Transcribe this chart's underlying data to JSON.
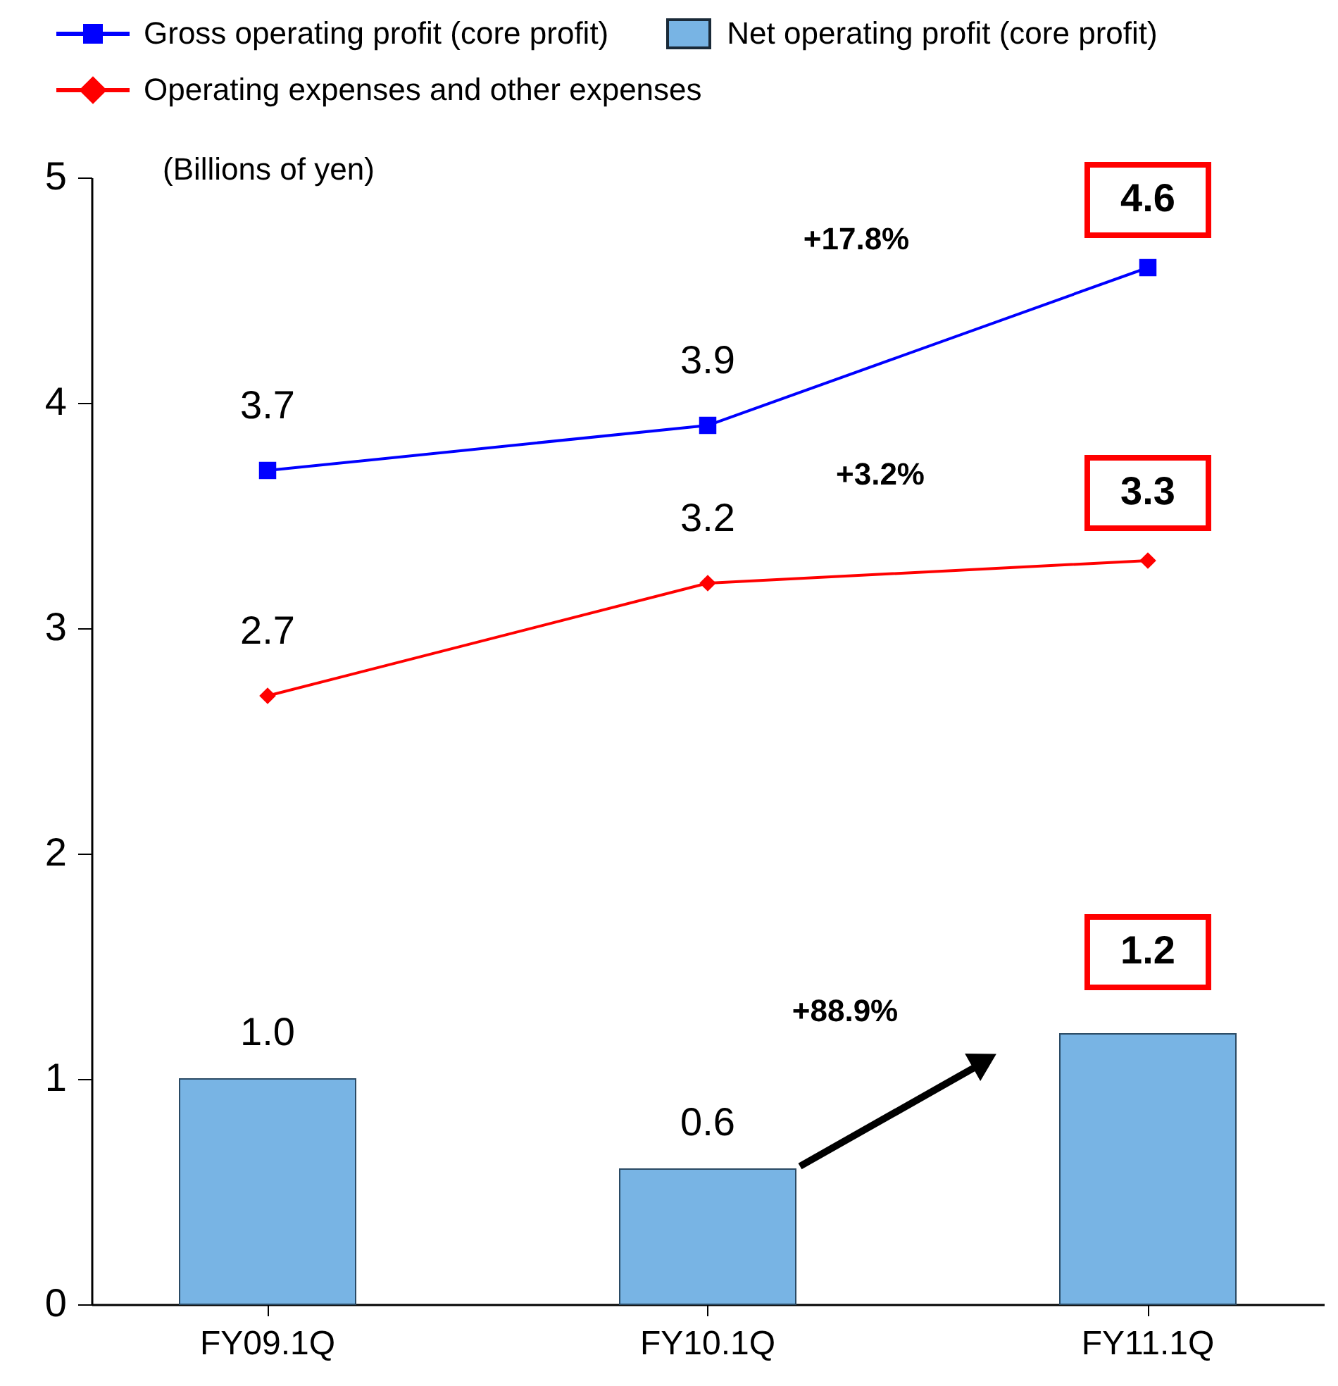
{
  "chart_data": {
    "type": "bar",
    "ylabel": "(Billions of yen)",
    "categories": [
      "FY09.1Q",
      "FY10.1Q",
      "FY11.1Q"
    ],
    "series": [
      {
        "name": "Gross operating profit (core profit)",
        "type": "line",
        "marker": "square",
        "color": "#0000ff",
        "values": [
          3.7,
          3.9,
          4.6
        ],
        "value_labels": [
          "3.7",
          "3.9",
          "4.6"
        ]
      },
      {
        "name": "Net operating profit (core profit)",
        "color": "#78b4e4",
        "values": [
          1.0,
          0.6,
          1.2
        ],
        "value_labels": [
          "1.0",
          "0.6",
          "1.2"
        ]
      },
      {
        "name": "Operating expenses and other expenses",
        "type": "line",
        "marker": "diamond",
        "color": "#ff0000",
        "values": [
          2.7,
          3.2,
          3.3
        ],
        "value_labels": [
          "2.7",
          "3.2",
          "3.3"
        ]
      }
    ],
    "annotations": [
      "+17.8%",
      "+3.2%",
      "+88.9%"
    ],
    "ylim": [
      0,
      5
    ],
    "yticks": [
      0,
      1,
      2,
      3,
      4,
      5
    ],
    "grid": false,
    "legend": "top"
  }
}
